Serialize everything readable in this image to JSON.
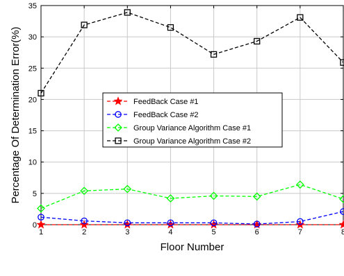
{
  "chart_data": {
    "type": "line",
    "title": "",
    "xlabel": "Floor Number",
    "ylabel": "Percentage Of Determination Error(%)",
    "xlim": [
      1,
      8
    ],
    "ylim": [
      0,
      35
    ],
    "xticks": [
      1,
      2,
      3,
      4,
      5,
      6,
      7,
      8
    ],
    "yticks": [
      0,
      5,
      10,
      15,
      20,
      25,
      30,
      35
    ],
    "grid": true,
    "legend_placement": "center-left",
    "x": [
      1,
      2,
      3,
      4,
      5,
      6,
      7,
      8
    ],
    "series": [
      {
        "name": "FeedBack Case #1",
        "color": "#ff0000",
        "marker": "star",
        "values": [
          0,
          0,
          0,
          0,
          0,
          0,
          0,
          0
        ]
      },
      {
        "name": "FeedBack Case #2",
        "color": "#0000ff",
        "marker": "circle",
        "values": [
          1.2,
          0.6,
          0.3,
          0.3,
          0.3,
          0.1,
          0.5,
          2.1
        ]
      },
      {
        "name": "Group Variance Algorithm Case #1",
        "color": "#00ff00",
        "marker": "diamond",
        "values": [
          2.6,
          5.4,
          5.7,
          4.2,
          4.6,
          4.5,
          6.4,
          4.1
        ]
      },
      {
        "name": "Group Variance Algorithm Case #2",
        "color": "#000000",
        "marker": "square",
        "values": [
          21.0,
          31.9,
          33.9,
          31.5,
          27.2,
          29.3,
          33.1,
          25.9
        ]
      }
    ]
  }
}
